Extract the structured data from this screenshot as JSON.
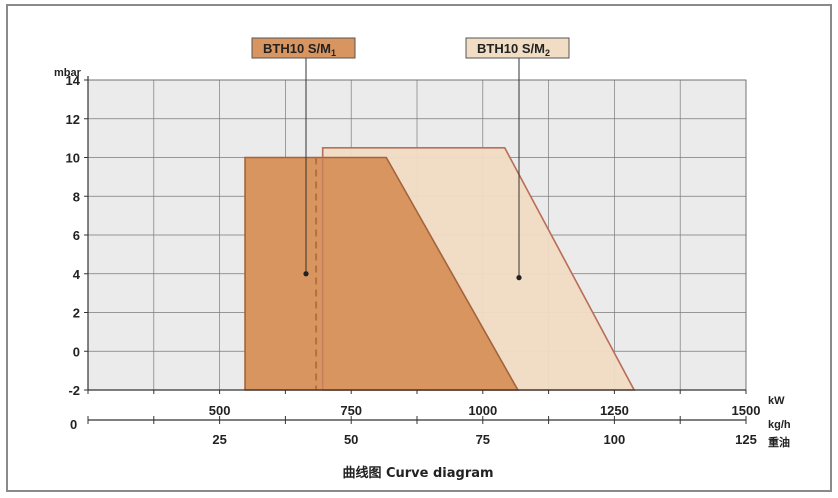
{
  "chart_data": {
    "type": "area",
    "title": "曲线图 Curve diagram",
    "ylabel": "mbar",
    "y_ticks": [
      "14",
      "12",
      "10",
      "8",
      "6",
      "4",
      "2",
      "0",
      "-2"
    ],
    "ylim": [
      -2,
      14
    ],
    "x_axis_kw": {
      "unit": "kW",
      "range": [
        0,
        1500
      ],
      "ticks": [
        "500",
        "750",
        "1000",
        "1250",
        "1500"
      ]
    },
    "x_axis_kgh": {
      "unit_line1": "kg/h",
      "unit_line2": "重油",
      "origin_label": "0",
      "ticks": [
        "25",
        "50",
        "75",
        "100",
        "125"
      ]
    },
    "grid": true,
    "series": [
      {
        "name": "BTH10 S/M1",
        "label_main": "BTH10 S/M",
        "label_sub": "1",
        "fill": "#d9955f",
        "stroke": "#a4643b",
        "label_bg": "#d9955f",
        "points_kw_mbar": [
          [
            358,
            -2
          ],
          [
            358,
            10
          ],
          [
            680,
            10
          ],
          [
            980,
            -2
          ]
        ],
        "dashed_start_kw": 520
      },
      {
        "name": "BTH10 S/M2",
        "label_main": "BTH10 S/M",
        "label_sub": "2",
        "fill": "#f1dcc4",
        "stroke": "#b9705a",
        "label_bg": "#f1dcc4",
        "points_kw_mbar": [
          [
            535,
            -2
          ],
          [
            535,
            10.5
          ],
          [
            950,
            10.5
          ],
          [
            1245,
            -2
          ]
        ]
      }
    ]
  }
}
